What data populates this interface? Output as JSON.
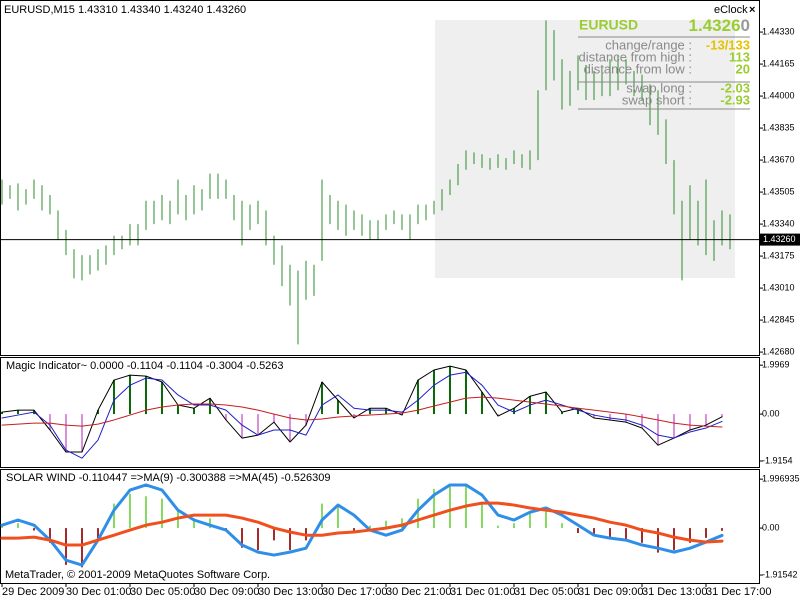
{
  "chart_data": [
    {
      "type": "hlbar",
      "title": "EURUSD,M15  1.43310 1.43340 1.43240 1.43260",
      "categories": [
        "29 Dec 2009",
        null,
        null,
        null,
        null,
        null,
        null,
        null,
        "30 Dec 01:00",
        null,
        null,
        null,
        null,
        null,
        null,
        null,
        "30 Dec 05:00",
        null,
        null,
        null,
        null,
        null,
        null,
        null,
        "30 Dec 09:00",
        null,
        null,
        null,
        null,
        null,
        null,
        null,
        "30 Dec 13:00",
        null,
        null,
        null,
        null,
        null,
        null,
        null,
        "30 Dec 17:00",
        null,
        null,
        null,
        null,
        null,
        null,
        null,
        "30 Dec 21:00",
        null,
        null,
        null,
        null,
        null,
        null,
        null,
        "31 Dec 01:00",
        null,
        null,
        null,
        null,
        null,
        null,
        null,
        "31 Dec 05:00",
        null,
        null,
        null,
        null,
        null,
        null,
        null,
        "31 Dec 09:00",
        null,
        null,
        null,
        null,
        null,
        null,
        null,
        "31 Dec 13:00",
        null,
        null,
        null,
        null,
        null,
        null,
        null,
        "31 Dec 17:00",
        null,
        null,
        null
      ],
      "high": [
        1.4357,
        1.4354,
        1.4355,
        1.4352,
        1.4357,
        1.4354,
        1.4349,
        1.4341,
        1.4331,
        1.4321,
        1.4318,
        1.4318,
        1.4321,
        1.4323,
        1.4328,
        1.4328,
        1.4334,
        1.4334,
        1.4346,
        1.4346,
        1.4349,
        1.4346,
        1.4357,
        1.4349,
        1.4354,
        1.4352,
        1.436,
        1.436,
        1.4357,
        1.4349,
        1.4346,
        1.4344,
        1.4346,
        1.4341,
        1.4328,
        1.4323,
        1.4313,
        1.431,
        1.4315,
        1.4313,
        1.4357,
        1.4349,
        1.4346,
        1.4344,
        1.4341,
        1.4339,
        1.4336,
        1.4336,
        1.4339,
        1.4341,
        1.4339,
        1.4339,
        1.4344,
        1.4344,
        1.4346,
        1.4352,
        1.4357,
        1.4365,
        1.4372,
        1.4371,
        1.437,
        1.4368,
        1.437,
        1.4368,
        1.4372,
        1.437,
        1.4372,
        1.4403,
        1.4439,
        1.4434,
        1.4419,
        1.4413,
        1.4421,
        1.4416,
        1.4413,
        1.4416,
        1.4419,
        1.4421,
        1.4419,
        1.4413,
        1.4411,
        1.4406,
        1.4403,
        1.4388,
        1.4367,
        1.4346,
        1.4354,
        1.4346,
        1.4357,
        1.4336,
        1.4341,
        1.4339
      ],
      "low": [
        1.4344,
        1.4347,
        1.4341,
        1.4344,
        1.4347,
        1.4341,
        1.4339,
        1.4326,
        1.4318,
        1.4306,
        1.4305,
        1.4308,
        1.431,
        1.4313,
        1.4318,
        1.4321,
        1.4323,
        1.4323,
        1.4331,
        1.4334,
        1.4336,
        1.4334,
        1.4339,
        1.4336,
        1.4339,
        1.4341,
        1.4347,
        1.4347,
        1.4347,
        1.4336,
        1.4323,
        1.4331,
        1.4334,
        1.4323,
        1.4313,
        1.4302,
        1.4292,
        1.4272,
        1.4295,
        1.4297,
        1.4315,
        1.4334,
        1.4331,
        1.4328,
        1.4331,
        1.4328,
        1.4326,
        1.4326,
        1.4331,
        1.4334,
        1.4331,
        1.4326,
        1.4334,
        1.4336,
        1.4339,
        1.4341,
        1.4349,
        1.4354,
        1.4362,
        1.4365,
        1.4363,
        1.4362,
        1.4363,
        1.4362,
        1.4365,
        1.4363,
        1.4362,
        1.4367,
        1.4403,
        1.4408,
        1.4393,
        1.4395,
        1.4403,
        1.4398,
        1.4398,
        1.44,
        1.44,
        1.4403,
        1.4406,
        1.44,
        1.4398,
        1.4385,
        1.438,
        1.4365,
        1.4339,
        1.4305,
        1.4326,
        1.4323,
        1.4318,
        1.4315,
        1.4323,
        1.4321
      ],
      "color": "#2e8b2e",
      "ylim": [
        1.42665,
        1.44485
      ],
      "yticks": [
        {
          "value": 1.4433,
          "label": "1.44330"
        },
        1.44165,
        {
          "value": 1.44,
          "label": "1.44000"
        },
        1.43835,
        {
          "value": 1.4367,
          "label": "1.43670"
        },
        1.43505,
        {
          "value": 1.4334,
          "label": "1.43340"
        },
        1.43175,
        {
          "value": 1.4301,
          "label": "1.43010"
        },
        1.42845,
        {
          "value": 1.4268,
          "label": "1.42680"
        }
      ],
      "last_price": {
        "value": 1.4326,
        "label": "1.43260"
      }
    },
    {
      "type": "oscillator",
      "title": "Magic Indicator~ 0.0000 -0.1104 -0.1104 -0.3004 -0.5263",
      "ylim": [
        -2.12,
        2.29
      ],
      "yticks": [
        1.9969,
        {
          "value": 0,
          "label": "0.00"
        },
        -1.9154
      ],
      "series": [
        {
          "style": "histogram-line",
          "color": "#000000",
          "up_color": "#0a6a0a",
          "down_color": "#d98fd9",
          "width": 1,
          "values": [
            0.08,
            0.16,
            0.16,
            -0.65,
            -1.55,
            -1.55,
            0.16,
            1.39,
            1.59,
            1.55,
            1.31,
            0.37,
            0.24,
            0.65,
            -0.24,
            -0.98,
            -0.86,
            -0.33,
            -1.14,
            -0.45,
            1.31,
            0.57,
            -0.16,
            0.24,
            0.24,
            -0.04,
            1.39,
            1.8,
            1.96,
            1.8,
            0.9,
            -0.08,
            0.24,
            0.73,
            0.9,
            0.08,
            0.24,
            -0.16,
            -0.24,
            -0.33,
            -0.57,
            -1.27,
            -0.98,
            -0.65,
            -0.45,
            -0.11
          ]
        },
        {
          "style": "line",
          "color": "#1f1fc8",
          "width": 1,
          "values": [
            -0.16,
            -0.04,
            0.08,
            -0.45,
            -1.47,
            -1.8,
            -1.06,
            0.57,
            1.18,
            1.47,
            1.39,
            0.78,
            0.37,
            0.37,
            0.16,
            -0.45,
            -0.86,
            -0.65,
            -0.65,
            -0.86,
            0.37,
            0.78,
            0.24,
            0.16,
            0.16,
            0.08,
            0.57,
            1.18,
            1.59,
            1.71,
            1.18,
            0.37,
            0.08,
            0.37,
            0.57,
            0.37,
            0.16,
            -0.04,
            -0.16,
            -0.24,
            -0.45,
            -0.86,
            -0.98,
            -0.73,
            -0.57,
            -0.3
          ]
        },
        {
          "style": "line",
          "color": "#c81e1e",
          "width": 1,
          "values": [
            -0.45,
            -0.41,
            -0.37,
            -0.37,
            -0.45,
            -0.49,
            -0.41,
            -0.24,
            -0.04,
            0.16,
            0.29,
            0.37,
            0.41,
            0.41,
            0.37,
            0.29,
            0.16,
            0.0,
            -0.16,
            -0.24,
            -0.2,
            -0.12,
            -0.08,
            -0.04,
            0.0,
            0.04,
            0.16,
            0.33,
            0.49,
            0.65,
            0.69,
            0.65,
            0.57,
            0.49,
            0.41,
            0.33,
            0.24,
            0.16,
            0.08,
            0.0,
            -0.12,
            -0.24,
            -0.37,
            -0.45,
            -0.49,
            -0.53
          ]
        }
      ]
    },
    {
      "type": "oscillator",
      "title": "SOLAR WIND -0.110447  =>MA(9) -0.300388  =>MA(45) -0.526309",
      "ylim": [
        -2.24,
        2.37
      ],
      "yticks": [
        1.996935,
        {
          "value": 0,
          "label": "0.00"
        },
        -1.91542
      ],
      "series": [
        {
          "style": "histogram",
          "color": "#7fd35f",
          "up_color": "#86dc62",
          "down_color": "#a52a2a",
          "width": 1,
          "values": [
            0.16,
            0.2,
            -0.1,
            -0.6,
            -1.5,
            -1.6,
            -0.5,
            1.0,
            1.4,
            1.3,
            1.2,
            0.7,
            0.4,
            0.4,
            -0.1,
            -0.8,
            -0.9,
            -0.5,
            -0.9,
            -0.5,
            1.0,
            0.9,
            -0.1,
            0.1,
            0.3,
            0.4,
            1.2,
            1.6,
            1.8,
            1.7,
            1.0,
            0.1,
            0.2,
            0.6,
            0.8,
            0.2,
            -0.2,
            -0.3,
            -0.4,
            -0.5,
            -0.6,
            -1.0,
            -0.9,
            -0.6,
            -0.4,
            -0.11
          ]
        },
        {
          "style": "line",
          "color": "#2f8fe8",
          "width": 3,
          "values": [
            0.12,
            0.33,
            0.12,
            -0.49,
            -1.31,
            -1.51,
            -0.49,
            0.73,
            1.55,
            1.76,
            1.55,
            0.73,
            0.33,
            0.12,
            -0.08,
            -0.69,
            -0.98,
            -1.1,
            -0.98,
            -0.82,
            0.33,
            0.94,
            0.53,
            -0.08,
            -0.29,
            -0.08,
            0.73,
            1.35,
            1.76,
            1.76,
            1.35,
            0.53,
            0.33,
            0.65,
            0.82,
            0.53,
            0.12,
            -0.29,
            -0.41,
            -0.49,
            -0.69,
            -0.82,
            -0.98,
            -0.82,
            -0.57,
            -0.3
          ]
        },
        {
          "style": "line",
          "color": "#f0501e",
          "width": 3,
          "values": [
            -0.41,
            -0.41,
            -0.37,
            -0.49,
            -0.69,
            -0.69,
            -0.49,
            -0.29,
            -0.08,
            0.12,
            0.24,
            0.41,
            0.53,
            0.53,
            0.53,
            0.41,
            0.24,
            0.0,
            -0.16,
            -0.29,
            -0.29,
            -0.2,
            -0.16,
            -0.08,
            0.0,
            0.12,
            0.33,
            0.53,
            0.73,
            0.9,
            1.02,
            1.02,
            0.94,
            0.82,
            0.73,
            0.65,
            0.53,
            0.41,
            0.24,
            0.12,
            -0.08,
            -0.2,
            -0.37,
            -0.49,
            -0.57,
            -0.53
          ]
        }
      ]
    }
  ],
  "footer": "MetaTrader, © 2001-2009 MetaQuotes Software Corp.",
  "eclock": {
    "title": "eClock",
    "close": "×",
    "symbol": "EURUSD",
    "price": "1.4326",
    "price_last_digit": "0",
    "rows": [
      {
        "label": "change/range :",
        "value": "-13/133"
      },
      {
        "label": "distance from high :",
        "value": "113"
      },
      {
        "label": "distance from low :",
        "value": "20"
      },
      {
        "label": "swap long :",
        "value": "-2.03"
      },
      {
        "label": "swap short :",
        "value": "-2.93"
      }
    ]
  }
}
